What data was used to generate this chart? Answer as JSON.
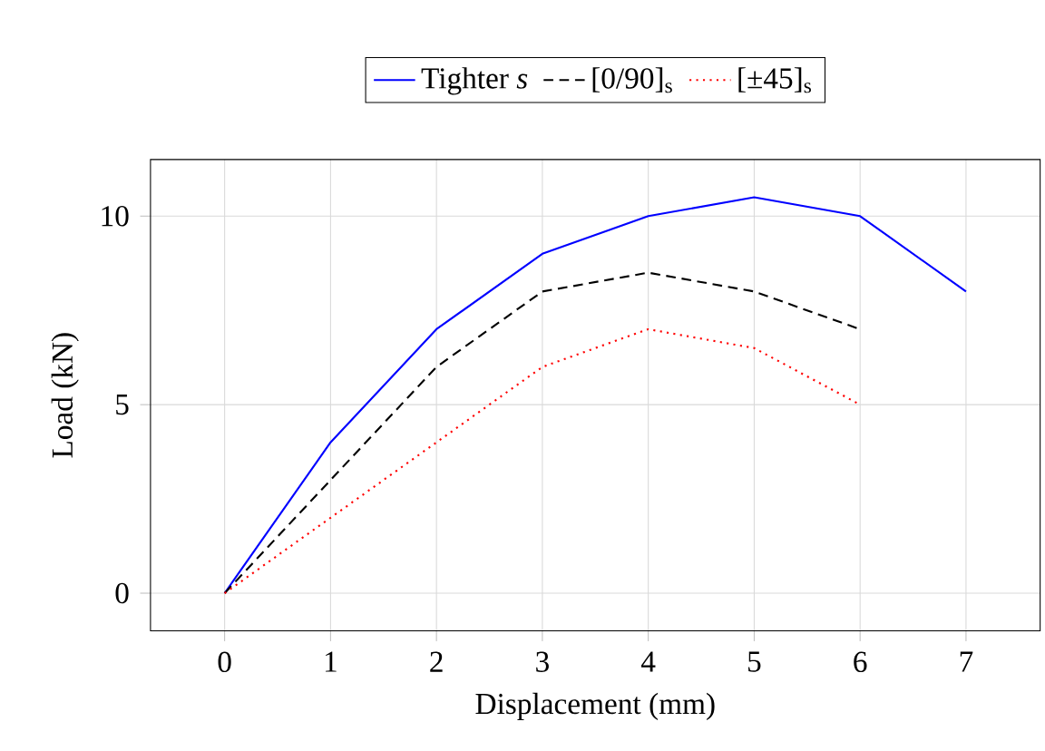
{
  "chart_data": {
    "type": "line",
    "xlabel": "Displacement (mm)",
    "ylabel": "Load (kN)",
    "x": [
      0,
      1,
      2,
      3,
      4,
      5,
      6,
      7
    ],
    "series": [
      {
        "name": "Tighter *s*",
        "color": "#0000ff",
        "line_style": "solid",
        "values": [
          0,
          4,
          7,
          9,
          10,
          10.5,
          10,
          8
        ]
      },
      {
        "name": "[0/90]$_{s}$",
        "color": "#000000",
        "line_style": "dashed",
        "values": [
          0,
          3,
          6,
          8,
          8.5,
          8,
          7,
          null
        ]
      },
      {
        "name": "[±45]$_{s}$",
        "color": "#ff0000",
        "line_style": "dotted",
        "values": [
          0,
          2,
          4,
          6,
          7,
          6.5,
          5,
          null
        ]
      }
    ],
    "xlim": [
      -0.7,
      7.7
    ],
    "ylim": [
      -1,
      11.5
    ],
    "xticks": [
      0,
      1,
      2,
      3,
      4,
      5,
      6,
      7
    ],
    "yticks": [
      0,
      5,
      10
    ],
    "grid": true,
    "legend": "top",
    "marker": "none"
  }
}
